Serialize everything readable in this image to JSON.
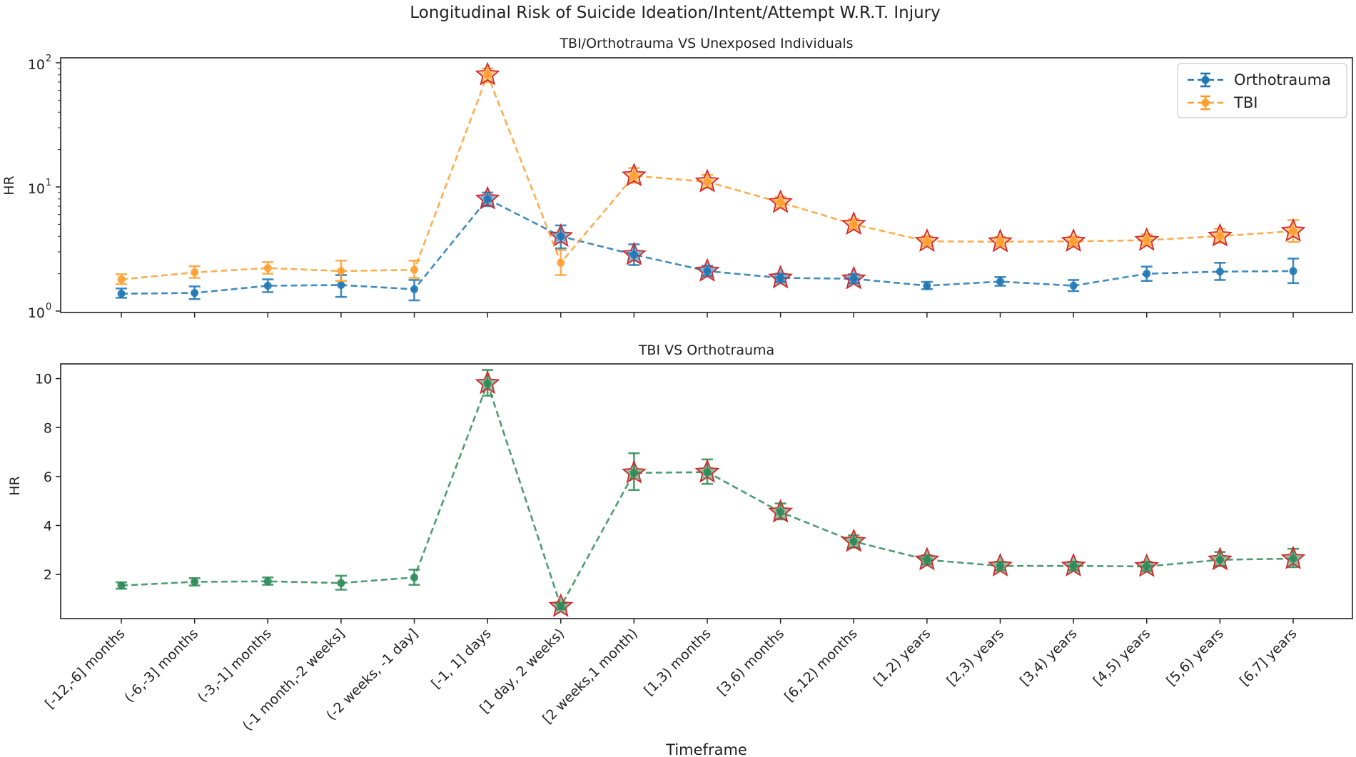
{
  "figure_title": "Longitudinal Risk of Suicide Ideation/Intent/Attempt W.R.T. Injury",
  "xlabel": "Timeframe",
  "categories": [
    "[-12,-6] months",
    "(-6,-3] months",
    "(-3,-1] months",
    "(-1 month,-2 weeks]",
    "(-2 weeks, -1 day]",
    "[-1, 1] days",
    "[1 day, 2 weeks)",
    "[2 weeks,1 month)",
    "[1,3) months",
    "[3,6) months",
    "[6,12) months",
    "[1,2) years",
    "[2,3) years",
    "[3,4) years",
    "[4,5) years",
    "[5,6) years",
    "[6,7] years"
  ],
  "colors": {
    "orthotrauma": "#1f77b4",
    "tbi": "#ff9f2f",
    "tbi_vs_ortho": "#2e8b57",
    "star_edge": "#d62728"
  },
  "chart_data": [
    {
      "type": "line",
      "title": "TBI/Orthotrauma VS Unexposed Individuals",
      "ylabel": "HR",
      "yscale": "log",
      "ylim": [
        1,
        100
      ],
      "yticks": [
        1,
        10,
        100
      ],
      "ytick_labels": [
        "10",
        "10",
        "10"
      ],
      "ytick_exponents": [
        "0",
        "1",
        "2"
      ],
      "legend": "top-right",
      "series": [
        {
          "name": "Orthotrauma",
          "color_key": "orthotrauma",
          "values": [
            1.38,
            1.4,
            1.6,
            1.62,
            1.5,
            8.0,
            4.0,
            2.85,
            2.1,
            1.85,
            1.82,
            1.6,
            1.73,
            1.6,
            2.0,
            2.08,
            2.1
          ],
          "err_low": [
            1.28,
            1.25,
            1.42,
            1.3,
            1.22,
            7.0,
            3.2,
            2.35,
            1.92,
            1.72,
            1.68,
            1.5,
            1.6,
            1.45,
            1.75,
            1.78,
            1.68
          ],
          "err_high": [
            1.52,
            1.58,
            1.8,
            1.95,
            1.78,
            9.0,
            4.9,
            3.45,
            2.32,
            2.0,
            1.98,
            1.72,
            1.88,
            1.78,
            2.28,
            2.45,
            2.65
          ],
          "significant": [
            false,
            false,
            false,
            false,
            false,
            true,
            true,
            true,
            true,
            true,
            true,
            false,
            false,
            false,
            false,
            false,
            false
          ]
        },
        {
          "name": "TBI",
          "color_key": "tbi",
          "values": [
            1.8,
            2.05,
            2.22,
            2.1,
            2.15,
            80.0,
            2.45,
            12.3,
            11.0,
            7.5,
            5.0,
            3.65,
            3.62,
            3.65,
            3.72,
            4.02,
            4.4
          ],
          "err_low": [
            1.65,
            1.85,
            2.0,
            1.75,
            1.85,
            70.0,
            1.95,
            10.8,
            9.8,
            6.8,
            4.6,
            3.35,
            3.35,
            3.35,
            3.4,
            3.55,
            3.6
          ],
          "err_high": [
            1.98,
            2.3,
            2.48,
            2.55,
            2.55,
            90.0,
            3.1,
            14.2,
            12.5,
            8.3,
            5.5,
            4.0,
            3.95,
            3.98,
            4.15,
            4.6,
            5.4
          ],
          "significant": [
            false,
            false,
            false,
            false,
            false,
            true,
            false,
            true,
            true,
            true,
            true,
            true,
            true,
            true,
            true,
            true,
            true
          ]
        }
      ]
    },
    {
      "type": "line",
      "title": "TBI VS Orthotrauma",
      "ylabel": "HR",
      "yscale": "linear",
      "ylim": [
        0.2,
        10.6
      ],
      "yticks": [
        2,
        4,
        6,
        8,
        10
      ],
      "ytick_labels": [
        "2",
        "4",
        "6",
        "8",
        "10"
      ],
      "series": [
        {
          "name": "TBI VS Orthotrauma",
          "color_key": "tbi_vs_ortho",
          "values": [
            1.55,
            1.7,
            1.72,
            1.65,
            1.88,
            9.8,
            0.7,
            6.15,
            6.18,
            4.55,
            3.35,
            2.6,
            2.35,
            2.35,
            2.33,
            2.6,
            2.65
          ],
          "err_low": [
            1.42,
            1.55,
            1.58,
            1.38,
            1.58,
            9.3,
            0.58,
            5.45,
            5.7,
            4.25,
            3.1,
            2.42,
            2.18,
            2.18,
            2.15,
            2.35,
            2.3
          ],
          "err_high": [
            1.68,
            1.85,
            1.88,
            1.95,
            2.2,
            10.35,
            0.82,
            6.95,
            6.7,
            4.9,
            3.6,
            2.78,
            2.52,
            2.52,
            2.52,
            2.92,
            3.05
          ],
          "significant": [
            false,
            false,
            false,
            false,
            false,
            true,
            true,
            true,
            true,
            true,
            true,
            true,
            true,
            true,
            true,
            true,
            true
          ]
        }
      ]
    }
  ]
}
